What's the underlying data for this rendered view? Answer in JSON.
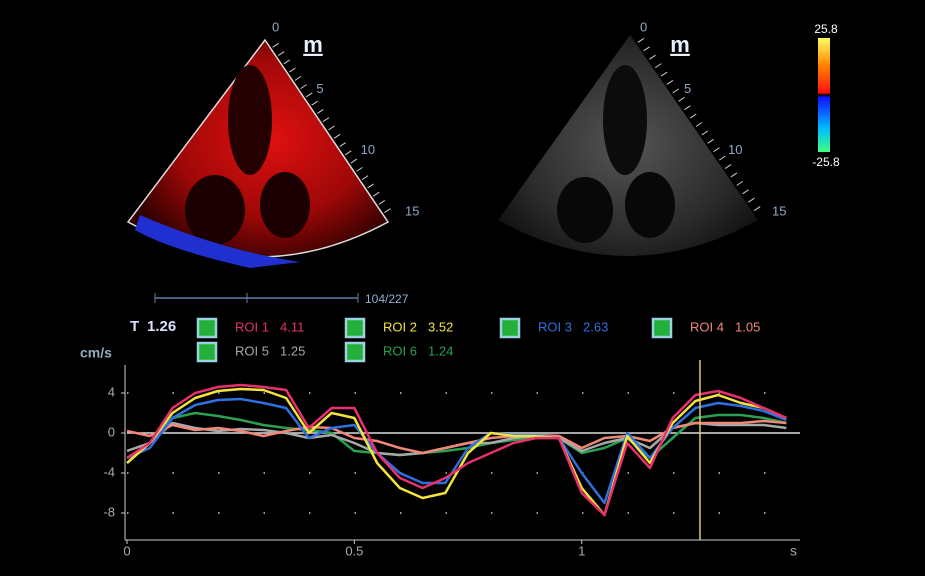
{
  "left_image": {
    "logo": "m",
    "depth_ticks": [
      0,
      5,
      10,
      15
    ]
  },
  "right_image": {
    "logo": "m",
    "depth_ticks": [
      0,
      5,
      10,
      15
    ]
  },
  "colorbar": {
    "max": 25.8,
    "min": -25.8
  },
  "cine": {
    "frame": "104/227"
  },
  "chart_data": {
    "type": "line",
    "y_label": "cm/s",
    "x_label": "s",
    "cursor_label": "T",
    "cursor": 1.26,
    "xlim": [
      0,
      1.48
    ],
    "ylim": [
      -10.7,
      6.8
    ],
    "xticks": [
      0,
      0.5,
      1
    ],
    "yticks": [
      4,
      0,
      -4,
      -8
    ],
    "grid": true,
    "x": [
      0,
      0.05,
      0.1,
      0.15,
      0.2,
      0.25,
      0.3,
      0.35,
      0.4,
      0.45,
      0.5,
      0.55,
      0.6,
      0.65,
      0.7,
      0.75,
      0.8,
      0.85,
      0.9,
      0.95,
      1.0,
      1.05,
      1.1,
      1.15,
      1.2,
      1.25,
      1.3,
      1.35,
      1.4,
      1.45
    ],
    "series": [
      {
        "name": "ROI 1",
        "readout": 4.11,
        "color": "#e8306e",
        "values": [
          -2.5,
          -1,
          2.5,
          4,
          4.6,
          4.8,
          4.6,
          4.3,
          0.5,
          2.5,
          2.5,
          -2,
          -4.5,
          -5.5,
          -4.5,
          -3,
          -2,
          -1,
          -0.5,
          -0.5,
          -6,
          -8.2,
          -1,
          -3.5,
          1.5,
          3.8,
          4.2,
          3.5,
          2.5,
          1.5
        ]
      },
      {
        "name": "ROI 2",
        "readout": 3.52,
        "color": "#f2e43c",
        "values": [
          -3,
          -1,
          2,
          3.5,
          4.2,
          4.4,
          4.3,
          3.5,
          0,
          2,
          1.5,
          -3,
          -5.5,
          -6.5,
          -6,
          -2,
          0,
          -0.3,
          -0.3,
          -0.5,
          -5.5,
          -8.2,
          -0.3,
          -3,
          1,
          3.2,
          3.8,
          3,
          2.5,
          1.5
        ]
      },
      {
        "name": "ROI 3",
        "readout": 2.63,
        "color": "#2f6fe0",
        "values": [
          -2.5,
          -1.5,
          1.5,
          2.8,
          3.3,
          3.4,
          3,
          2.5,
          -0.5,
          0.5,
          0.8,
          -2,
          -4,
          -5,
          -5,
          -1.5,
          0,
          -0.2,
          -0.2,
          -0.5,
          -4,
          -7,
          0,
          -2.5,
          0.5,
          2.5,
          3,
          2.7,
          2.2,
          1.3
        ]
      },
      {
        "name": "ROI 4",
        "readout": 1.05,
        "color": "#f08878",
        "values": [
          0.2,
          -0.3,
          0.8,
          0.3,
          0.5,
          0.2,
          -0.3,
          0.2,
          0.6,
          0.5,
          -0.5,
          -0.8,
          -1.5,
          -2,
          -1.5,
          -1,
          -0.5,
          -0.3,
          -0.2,
          -0.3,
          -1.5,
          -0.5,
          -0.3,
          -0.8,
          0.5,
          1,
          1,
          1,
          1.2,
          1
        ]
      },
      {
        "name": "ROI 5",
        "readout": 1.25,
        "color": "#a8a8a8",
        "values": [
          -1.8,
          -1,
          1,
          0.5,
          0.2,
          0.4,
          0.3,
          0,
          -0.5,
          -0.2,
          -1,
          -2,
          -2.2,
          -2,
          -1.5,
          -1,
          -1,
          -0.5,
          -0.3,
          -0.5,
          -1.8,
          -1,
          -0.5,
          -1.5,
          0.5,
          1,
          0.8,
          0.8,
          0.8,
          0.5
        ]
      },
      {
        "name": "ROI 6",
        "readout": 1.24,
        "color": "#2aa050",
        "values": [
          -3,
          -1,
          1.5,
          2,
          1.7,
          1.3,
          0.8,
          0.5,
          0.3,
          0,
          -1.8,
          -2,
          -2.2,
          -2,
          -1.8,
          -1.5,
          -1,
          -0.7,
          -0.5,
          -0.5,
          -2,
          -1.5,
          -0.5,
          -2.5,
          -0.5,
          1.5,
          1.8,
          1.8,
          1.5,
          1
        ]
      }
    ]
  }
}
